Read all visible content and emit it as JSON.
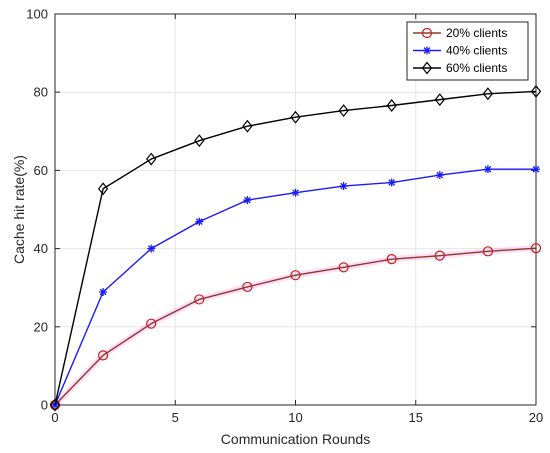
{
  "chart_data": {
    "type": "line",
    "xlabel": "Communication Rounds",
    "ylabel": "Cache hit rate(%)",
    "xlim": [
      0,
      20
    ],
    "ylim": [
      0,
      100
    ],
    "xticks": [
      0,
      5,
      10,
      15,
      20
    ],
    "yticks": [
      0,
      20,
      40,
      60,
      80,
      100
    ],
    "grid": true,
    "legend_position": "top-right",
    "x": [
      0,
      2,
      4,
      6,
      8,
      10,
      12,
      14,
      16,
      18,
      20
    ],
    "series": [
      {
        "name": "20% clients",
        "color": "#cc1a1a",
        "line_color": "#8b3a2a",
        "marker": "circle",
        "values": [
          0,
          12.7,
          20.8,
          27.0,
          30.2,
          33.2,
          35.2,
          37.3,
          38.2,
          39.3,
          40.1
        ]
      },
      {
        "name": "40% clients",
        "color": "#1a1aff",
        "line_color": "#1a1aff",
        "marker": "asterisk",
        "values": [
          0,
          28.9,
          40.0,
          46.9,
          52.4,
          54.3,
          56.0,
          56.9,
          58.8,
          60.3,
          60.3
        ]
      },
      {
        "name": "60% clients",
        "color": "#000000",
        "line_color": "#000000",
        "marker": "diamond",
        "values": [
          0,
          55.3,
          62.9,
          67.6,
          71.3,
          73.6,
          75.3,
          76.6,
          78.1,
          79.6,
          80.2
        ]
      }
    ]
  }
}
